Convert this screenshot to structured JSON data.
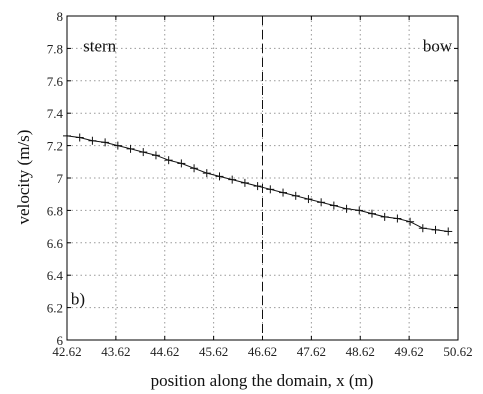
{
  "chart_data": {
    "type": "line",
    "title": "",
    "xlabel": "position along the domain, x (m)",
    "ylabel": "velocity (m/s)",
    "xlim": [
      42.62,
      50.62
    ],
    "ylim": [
      6,
      8
    ],
    "xticks": [
      42.62,
      43.62,
      44.62,
      45.62,
      46.62,
      47.62,
      48.62,
      49.62,
      50.62
    ],
    "xtick_labels": [
      "42.62",
      "43.62",
      "44.62",
      "45.62",
      "46.62",
      "47.62",
      "48.62",
      "49.62",
      "50.62"
    ],
    "yticks": [
      6,
      6.2,
      6.4,
      6.6,
      6.8,
      7,
      7.2,
      7.4,
      7.6,
      7.8,
      8
    ],
    "ytick_labels": [
      "6",
      "6.2",
      "6.4",
      "6.6",
      "6.8",
      "7",
      "7.2",
      "7.4",
      "7.6",
      "7.8",
      "8"
    ],
    "grid": true,
    "marker": "+",
    "vertical_line": {
      "x": 46.62,
      "style": "dashed"
    },
    "annotations": [
      {
        "text": "stern",
        "x": 42.95,
        "y": 7.78,
        "anchor": "start"
      },
      {
        "text": "bow",
        "x": 50.5,
        "y": 7.78,
        "anchor": "end"
      },
      {
        "text": "b)",
        "x": 42.7,
        "y": 6.22,
        "anchor": "start"
      }
    ],
    "series": [
      {
        "x": [
          42.62,
          42.88,
          43.14,
          43.4,
          43.66,
          43.92,
          44.18,
          44.44,
          44.7,
          44.96,
          45.22,
          45.48,
          45.74,
          46.0,
          46.26,
          46.52,
          46.78,
          47.04,
          47.3,
          47.56,
          47.82,
          48.08,
          48.34,
          48.6,
          48.86,
          49.12,
          49.38,
          49.64,
          49.9,
          50.16,
          50.42
        ],
        "y": [
          7.26,
          7.25,
          7.23,
          7.22,
          7.2,
          7.18,
          7.16,
          7.14,
          7.11,
          7.09,
          7.06,
          7.03,
          7.01,
          6.99,
          6.97,
          6.95,
          6.93,
          6.91,
          6.89,
          6.87,
          6.85,
          6.83,
          6.81,
          6.8,
          6.78,
          6.76,
          6.75,
          6.73,
          6.69,
          6.68,
          6.67
        ]
      }
    ]
  }
}
